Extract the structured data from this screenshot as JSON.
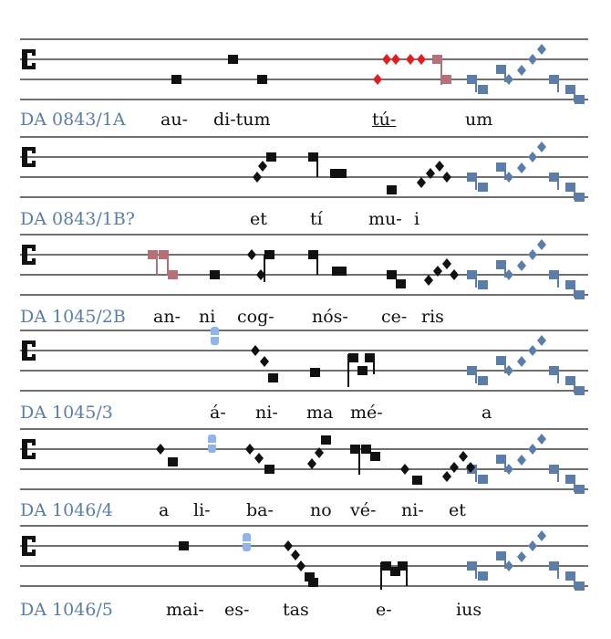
{
  "colors": {
    "staff_line": "#1a1a1a",
    "neume_black": "#111111",
    "neume_red": "#e02020",
    "neume_rose": "#b5707a",
    "neume_blue": "#5b7da8",
    "neume_lightblue": "#8fb4ea",
    "label_blue": "#5b7da8"
  },
  "icons": [
    "c-clef-icon",
    "punctum-neume-icon",
    "virga-neume-icon",
    "rhombus-neume-icon",
    "custos-icon"
  ],
  "rows": [
    {
      "label": "DA 0843/1A",
      "syllables": [
        "au-",
        "di-tum",
        "tú-",
        "um"
      ],
      "underlined": [
        2
      ]
    },
    {
      "label": "DA 0843/1B?",
      "syllables": [
        "et",
        "tí",
        "mu-",
        "i"
      ],
      "underlined": []
    },
    {
      "label": "DA 1045/2B",
      "syllables": [
        "an-",
        "ni",
        "cog-",
        "nós-",
        "ce-",
        "ris"
      ],
      "underlined": []
    },
    {
      "label": "DA 1045/3",
      "syllables": [
        "á-",
        "ni-",
        "ma",
        "mé-",
        "a"
      ],
      "underlined": []
    },
    {
      "label": "DA 1046/4",
      "syllables": [
        "a",
        "li-",
        "ba-",
        "no",
        "vé-",
        "ni-",
        "et"
      ],
      "underlined": []
    },
    {
      "label": "DA 1046/5",
      "syllables": [
        "mai-",
        "es-",
        "tas",
        "e-",
        "ius"
      ],
      "underlined": []
    }
  ]
}
